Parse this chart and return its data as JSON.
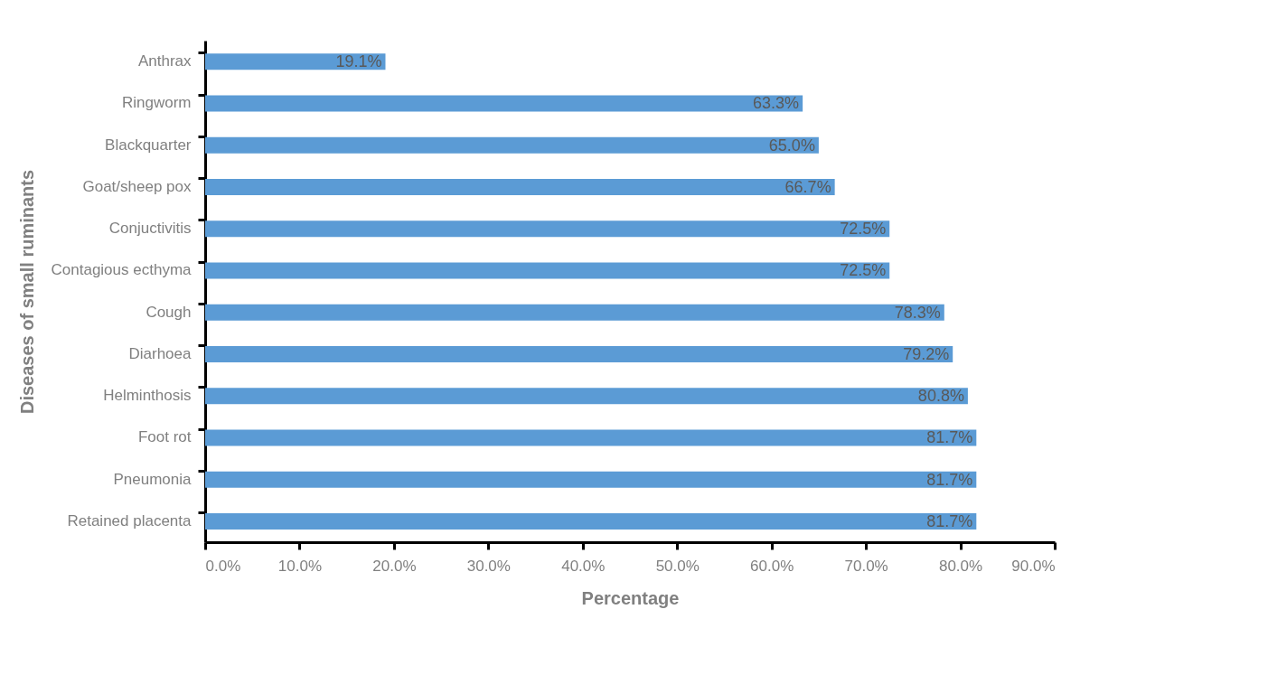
{
  "chart_data": {
    "type": "bar",
    "orientation": "horizontal",
    "xlabel": "Percentage",
    "ylabel": "Diseases of small ruminants",
    "categories": [
      "Anthrax",
      "Ringworm",
      "Blackquarter",
      "Goat/sheep pox",
      "Conjuctivitis",
      "Contagious ecthyma",
      "Cough",
      "Diarhoea",
      "Helminthosis",
      "Foot rot",
      "Pneumonia",
      "Retained placenta"
    ],
    "values": [
      19.1,
      63.3,
      65.0,
      66.7,
      72.5,
      72.5,
      78.3,
      79.2,
      80.8,
      81.7,
      81.7,
      81.7
    ],
    "value_labels": [
      "19.1%",
      "63.3%",
      "65.0%",
      "66.7%",
      "72.5%",
      "72.5%",
      "78.3%",
      "79.2%",
      "80.8%",
      "81.7%",
      "81.7%",
      "81.7%"
    ],
    "color": "#5b9bd5",
    "xlim": [
      0,
      90
    ],
    "xticks": [
      {
        "value": 0,
        "label": "0.0%"
      },
      {
        "value": 10,
        "label": "10.0%"
      },
      {
        "value": 20,
        "label": "20.0%"
      },
      {
        "value": 30,
        "label": "30.0%"
      },
      {
        "value": 40,
        "label": "40.0%"
      },
      {
        "value": 50,
        "label": "50.0%"
      },
      {
        "value": 60,
        "label": "60.0%"
      },
      {
        "value": 70,
        "label": "70.0%"
      },
      {
        "value": 80,
        "label": "80.0%"
      },
      {
        "value": 90,
        "label": "90.0%"
      }
    ],
    "grid": false
  }
}
